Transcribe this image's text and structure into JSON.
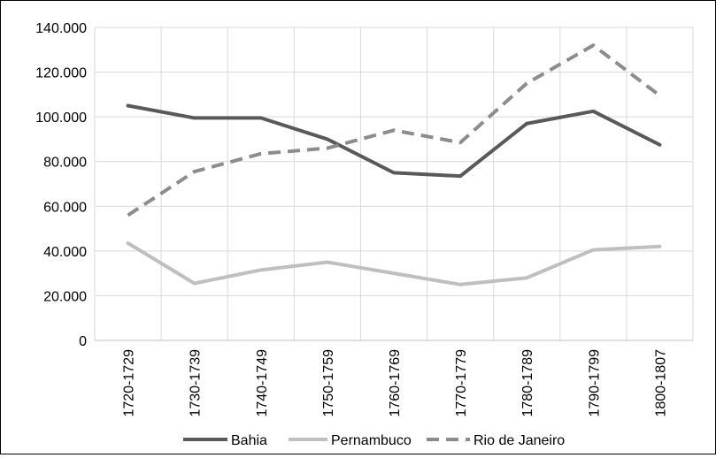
{
  "chart_data": {
    "type": "line",
    "categories": [
      "1720-1729",
      "1730-1739",
      "1740-1749",
      "1750-1759",
      "1760-1769",
      "1770-1779",
      "1780-1789",
      "1790-1799",
      "1800-1807"
    ],
    "ylim": [
      0,
      140000
    ],
    "yticks": [
      0,
      20000,
      40000,
      60000,
      80000,
      100000,
      120000,
      140000
    ],
    "ytick_labels": [
      "0",
      "20.000",
      "40.000",
      "60.000",
      "80.000",
      "100.000",
      "120.000",
      "140.000"
    ],
    "grid": true,
    "legend_position": "bottom",
    "series": [
      {
        "name": "Bahia",
        "values": [
          105000,
          99500,
          99500,
          90000,
          75000,
          73500,
          97000,
          102500,
          87500
        ],
        "color": "#595959",
        "style": "solid"
      },
      {
        "name": "Pernambuco",
        "values": [
          43500,
          25500,
          31500,
          35000,
          30000,
          25000,
          28000,
          40500,
          42000
        ],
        "color": "#bfbfbf",
        "style": "solid"
      },
      {
        "name": "Rio de Janeiro",
        "values": [
          56000,
          75500,
          83500,
          86000,
          94000,
          88500,
          115000,
          132000,
          109500
        ],
        "color": "#8c8c8c",
        "style": "dashed"
      }
    ]
  }
}
